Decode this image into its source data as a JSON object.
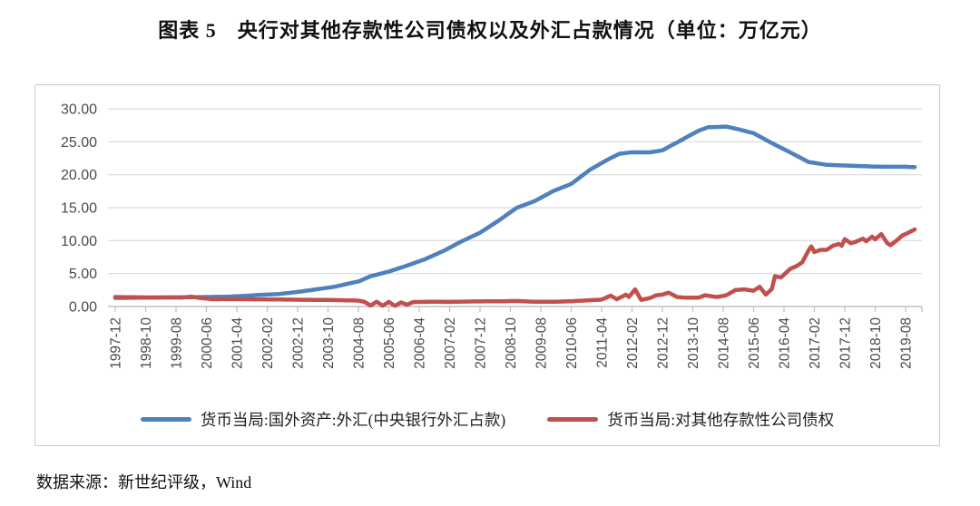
{
  "header": {
    "title": "图表 5　央行对其他存款性公司债权以及外汇占款情况（单位：万亿元）"
  },
  "footer": {
    "source": "数据来源：新世纪评级，Wind"
  },
  "colors": {
    "blue_series": "#4F81BD",
    "red_series": "#C0504D",
    "gridline": "#D9D9D9",
    "axis_line": "#BFBFBF",
    "tick_text": "#4A4A4A",
    "panel_border": "#C9C9C9"
  },
  "chart_data": {
    "type": "line",
    "title": "央行对其他存款性公司债权以及外汇占款情况",
    "unit": "万亿元",
    "ylim": [
      0,
      30
    ],
    "y_ticks": [
      0,
      5,
      10,
      15,
      20,
      25,
      30
    ],
    "y_tick_labels": [
      "0.00",
      "5.00",
      "10.00",
      "15.00",
      "20.00",
      "25.00",
      "30.00"
    ],
    "x_tick_labels": [
      "1997-12",
      "1998-10",
      "1999-08",
      "2000-06",
      "2001-04",
      "2002-02",
      "2002-12",
      "2003-10",
      "2004-08",
      "2005-06",
      "2006-04",
      "2007-02",
      "2007-12",
      "2008-10",
      "2009-08",
      "2010-06",
      "2011-04",
      "2012-02",
      "2012-12",
      "2013-10",
      "2014-08",
      "2015-06",
      "2016-04",
      "2017-02",
      "2017-12",
      "2018-10",
      "2019-08"
    ],
    "x_range": [
      "1997-12",
      "2019-11"
    ],
    "grid": "horizontal",
    "legend_position": "bottom",
    "series": [
      {
        "name": "货币当局:国外资产:外汇(中央银行外汇占款)",
        "color_key": "blue_series",
        "points": [
          [
            "1997-12",
            1.3
          ],
          [
            "1998-06",
            1.32
          ],
          [
            "1998-12",
            1.35
          ],
          [
            "1999-06",
            1.38
          ],
          [
            "1999-12",
            1.41
          ],
          [
            "2000-06",
            1.44
          ],
          [
            "2000-12",
            1.48
          ],
          [
            "2001-06",
            1.6
          ],
          [
            "2001-12",
            1.77
          ],
          [
            "2002-06",
            1.9
          ],
          [
            "2002-12",
            2.21
          ],
          [
            "2003-06",
            2.6
          ],
          [
            "2003-12",
            2.98
          ],
          [
            "2004-04",
            3.4
          ],
          [
            "2004-08",
            3.8
          ],
          [
            "2004-12",
            4.59
          ],
          [
            "2005-06",
            5.3
          ],
          [
            "2005-12",
            6.21
          ],
          [
            "2006-06",
            7.2
          ],
          [
            "2006-12",
            8.43
          ],
          [
            "2007-06",
            9.9
          ],
          [
            "2007-12",
            11.2
          ],
          [
            "2008-06",
            13.0
          ],
          [
            "2008-12",
            14.96
          ],
          [
            "2009-06",
            16.0
          ],
          [
            "2009-12",
            17.5
          ],
          [
            "2010-06",
            18.6
          ],
          [
            "2010-12",
            20.7
          ],
          [
            "2011-06",
            22.3
          ],
          [
            "2011-10",
            23.2
          ],
          [
            "2012-02",
            23.4
          ],
          [
            "2012-08",
            23.4
          ],
          [
            "2012-12",
            23.7
          ],
          [
            "2013-06",
            25.2
          ],
          [
            "2013-12",
            26.7
          ],
          [
            "2014-03",
            27.2
          ],
          [
            "2014-09",
            27.3
          ],
          [
            "2014-12",
            27.0
          ],
          [
            "2015-06",
            26.3
          ],
          [
            "2015-12",
            24.8
          ],
          [
            "2016-06",
            23.4
          ],
          [
            "2016-12",
            21.94
          ],
          [
            "2017-06",
            21.5
          ],
          [
            "2017-12",
            21.4
          ],
          [
            "2018-06",
            21.3
          ],
          [
            "2018-12",
            21.2
          ],
          [
            "2019-08",
            21.2
          ],
          [
            "2019-11",
            21.15
          ]
        ]
      },
      {
        "name": "货币当局:对其他存款性公司债权",
        "color_key": "red_series",
        "points": [
          [
            "1997-12",
            1.44
          ],
          [
            "1998-06",
            1.4
          ],
          [
            "1998-12",
            1.37
          ],
          [
            "1999-06",
            1.38
          ],
          [
            "1999-10",
            1.35
          ],
          [
            "2000-01",
            1.5
          ],
          [
            "2000-04",
            1.3
          ],
          [
            "2000-08",
            1.1
          ],
          [
            "2001-02",
            1.12
          ],
          [
            "2001-08",
            1.1
          ],
          [
            "2002-02",
            1.08
          ],
          [
            "2002-08",
            1.05
          ],
          [
            "2003-02",
            1.02
          ],
          [
            "2003-08",
            1.0
          ],
          [
            "2004-02",
            0.96
          ],
          [
            "2004-08",
            0.9
          ],
          [
            "2004-10",
            0.7
          ],
          [
            "2004-12",
            0.15
          ],
          [
            "2005-02",
            0.72
          ],
          [
            "2005-04",
            0.12
          ],
          [
            "2005-06",
            0.7
          ],
          [
            "2005-08",
            0.1
          ],
          [
            "2005-10",
            0.62
          ],
          [
            "2005-12",
            0.28
          ],
          [
            "2006-02",
            0.68
          ],
          [
            "2006-08",
            0.72
          ],
          [
            "2007-02",
            0.7
          ],
          [
            "2007-08",
            0.76
          ],
          [
            "2008-02",
            0.78
          ],
          [
            "2008-08",
            0.8
          ],
          [
            "2008-12",
            0.84
          ],
          [
            "2009-06",
            0.72
          ],
          [
            "2009-12",
            0.72
          ],
          [
            "2010-06",
            0.8
          ],
          [
            "2010-12",
            0.95
          ],
          [
            "2011-04",
            1.05
          ],
          [
            "2011-07",
            1.65
          ],
          [
            "2011-09",
            1.1
          ],
          [
            "2011-12",
            1.8
          ],
          [
            "2012-01",
            1.45
          ],
          [
            "2012-03",
            2.6
          ],
          [
            "2012-05",
            1.0
          ],
          [
            "2012-08",
            1.3
          ],
          [
            "2012-10",
            1.7
          ],
          [
            "2012-12",
            1.8
          ],
          [
            "2013-02",
            2.1
          ],
          [
            "2013-05",
            1.4
          ],
          [
            "2013-08",
            1.35
          ],
          [
            "2013-12",
            1.35
          ],
          [
            "2014-02",
            1.7
          ],
          [
            "2014-06",
            1.44
          ],
          [
            "2014-09",
            1.7
          ],
          [
            "2014-12",
            2.5
          ],
          [
            "2015-03",
            2.6
          ],
          [
            "2015-06",
            2.4
          ],
          [
            "2015-08",
            3.0
          ],
          [
            "2015-10",
            1.8
          ],
          [
            "2015-12",
            2.66
          ],
          [
            "2016-01",
            4.6
          ],
          [
            "2016-03",
            4.4
          ],
          [
            "2016-06",
            5.7
          ],
          [
            "2016-08",
            6.1
          ],
          [
            "2016-10",
            6.7
          ],
          [
            "2016-12",
            8.47
          ],
          [
            "2017-01",
            9.13
          ],
          [
            "2017-02",
            8.27
          ],
          [
            "2017-04",
            8.6
          ],
          [
            "2017-06",
            8.59
          ],
          [
            "2017-08",
            9.2
          ],
          [
            "2017-10",
            9.5
          ],
          [
            "2017-11",
            9.2
          ],
          [
            "2017-12",
            10.22
          ],
          [
            "2018-02",
            9.6
          ],
          [
            "2018-04",
            9.9
          ],
          [
            "2018-06",
            10.3
          ],
          [
            "2018-07",
            9.9
          ],
          [
            "2018-09",
            10.6
          ],
          [
            "2018-10",
            10.2
          ],
          [
            "2018-12",
            11.0
          ],
          [
            "2019-02",
            9.6
          ],
          [
            "2019-03",
            9.3
          ],
          [
            "2019-05",
            10.0
          ],
          [
            "2019-06",
            10.4
          ],
          [
            "2019-07",
            10.8
          ],
          [
            "2019-08",
            11.0
          ],
          [
            "2019-11",
            11.7
          ]
        ]
      }
    ]
  }
}
